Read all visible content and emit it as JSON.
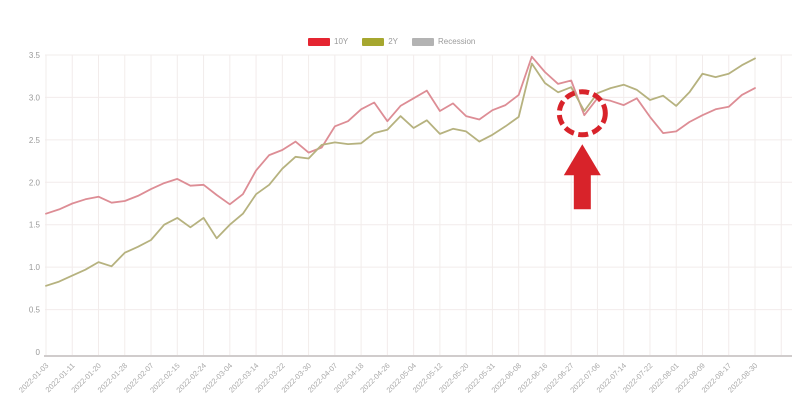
{
  "legend": {
    "items": [
      {
        "label": "10Y",
        "color": "#e52531"
      },
      {
        "label": "2Y",
        "color": "#a6a72f"
      },
      {
        "label": "Recession",
        "color": "#b3b3b3"
      }
    ]
  },
  "chart_data": {
    "type": "line",
    "title": "",
    "xlabel": "",
    "ylabel": "",
    "ylim": [
      0,
      3.5
    ],
    "y_ticks": [
      0,
      0.5,
      1.0,
      1.5,
      2.0,
      2.5,
      3.0,
      3.5
    ],
    "grid": true,
    "legend_position": "top-center",
    "categories": [
      "2022-01-03",
      "2022-01-11",
      "2022-01-20",
      "2022-01-28",
      "2022-02-07",
      "2022-02-15",
      "2022-02-24",
      "2022-03-04",
      "2022-03-14",
      "2022-03-22",
      "2022-03-30",
      "2022-04-07",
      "2022-04-18",
      "2022-04-26",
      "2022-05-04",
      "2022-05-12",
      "2022-05-20",
      "2022-05-31",
      "2022-06-08",
      "2022-06-16",
      "2022-06-27",
      "2022-07-06",
      "2022-07-14",
      "2022-07-22",
      "2022-08-01",
      "2022-08-09",
      "2022-08-17",
      "2022-08-30"
    ],
    "points_per_category_interval": 2,
    "series": [
      {
        "name": "10Y",
        "line_color": "#dd8d95",
        "values": [
          1.63,
          1.68,
          1.75,
          1.8,
          1.83,
          1.76,
          1.78,
          1.84,
          1.92,
          1.99,
          2.04,
          1.96,
          1.97,
          1.85,
          1.74,
          1.86,
          2.14,
          2.32,
          2.38,
          2.48,
          2.35,
          2.41,
          2.66,
          2.72,
          2.86,
          2.94,
          2.72,
          2.9,
          2.99,
          3.08,
          2.84,
          2.93,
          2.78,
          2.74,
          2.85,
          2.91,
          3.03,
          3.48,
          3.3,
          3.16,
          3.2,
          2.79,
          2.99,
          2.96,
          2.91,
          2.99,
          2.77,
          2.58,
          2.6,
          2.71,
          2.79,
          2.86,
          2.89,
          3.03,
          3.11
        ]
      },
      {
        "name": "2Y",
        "line_color": "#b6b27f",
        "values": [
          0.78,
          0.83,
          0.9,
          0.97,
          1.06,
          1.01,
          1.17,
          1.24,
          1.32,
          1.5,
          1.58,
          1.47,
          1.58,
          1.34,
          1.5,
          1.63,
          1.86,
          1.97,
          2.16,
          2.3,
          2.28,
          2.44,
          2.47,
          2.45,
          2.46,
          2.58,
          2.62,
          2.78,
          2.64,
          2.73,
          2.57,
          2.63,
          2.6,
          2.48,
          2.56,
          2.66,
          2.77,
          3.4,
          3.17,
          3.06,
          3.12,
          2.84,
          3.05,
          3.11,
          3.15,
          3.09,
          2.97,
          3.02,
          2.9,
          3.06,
          3.28,
          3.24,
          3.28,
          3.38,
          3.46
        ]
      },
      {
        "name": "Recession",
        "line_color": "#b3b3b3",
        "values": []
      }
    ],
    "annotation": {
      "shape": "dashed-circle-with-up-arrow",
      "color": "#d8232a",
      "target_series": "10Y",
      "target_point_index": 41,
      "target_value": 2.79
    }
  },
  "axis_style": {
    "y_label_color": "#999999",
    "x_label_color": "#a9a9a9",
    "grid_color": "#f2eceb",
    "axis_line_color": "#d0cccc"
  }
}
